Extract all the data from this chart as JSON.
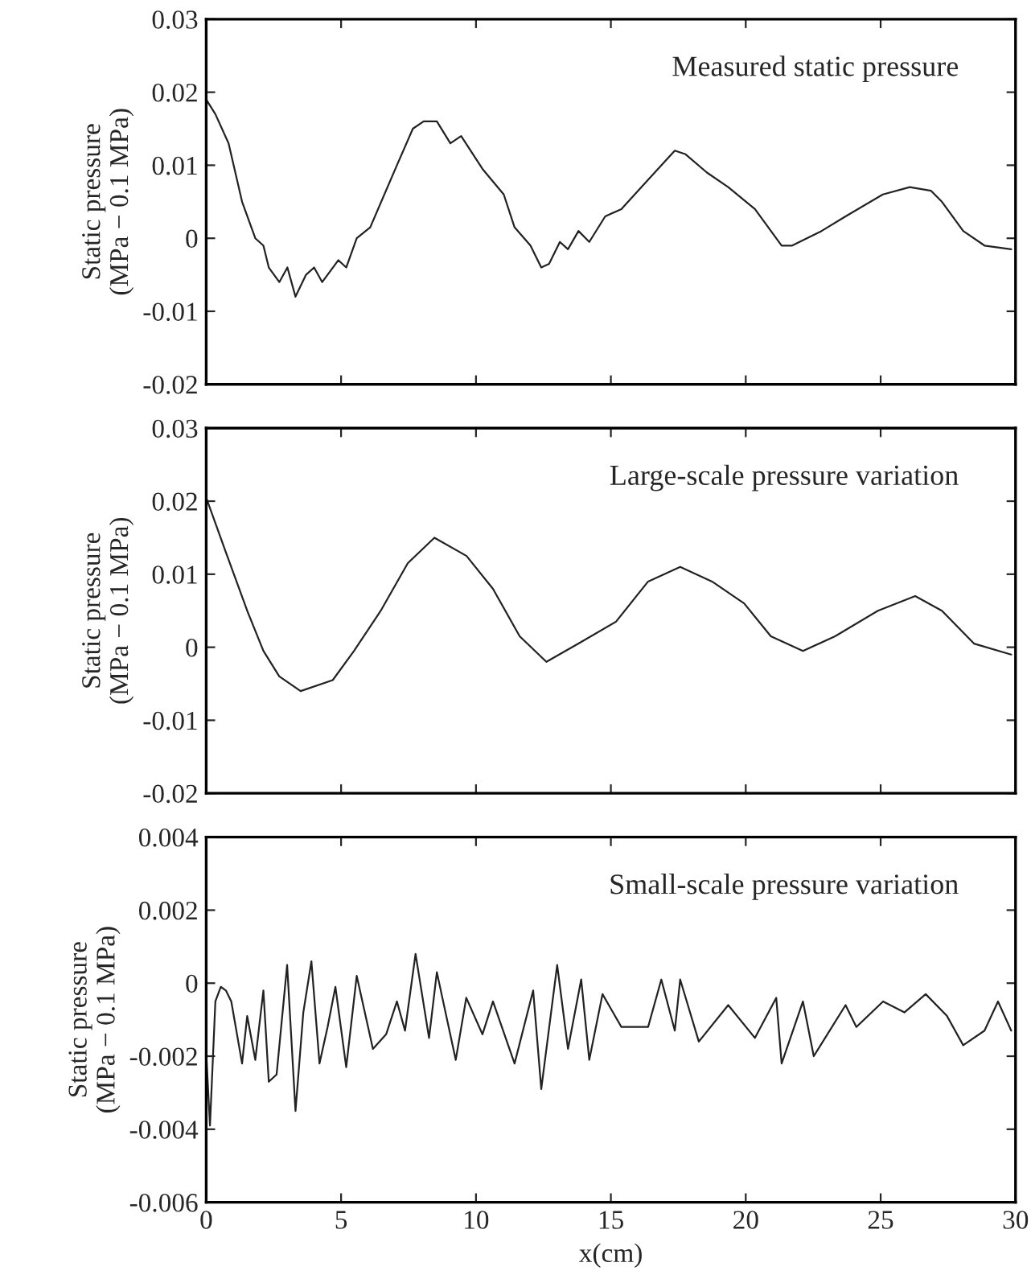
{
  "chart_data": [
    {
      "type": "line",
      "ylabel": "Static pressure\n(MPa − 0.1 MPa)",
      "annotations": [
        "Measured static pressure"
      ],
      "xlim": [
        0,
        30
      ],
      "xticks": [
        0,
        5,
        10,
        15,
        20,
        25,
        30
      ],
      "ylim": [
        -0.02,
        0.03
      ],
      "yticks": [
        -0.02,
        -0.01,
        0,
        0.01,
        0.02,
        0.03
      ],
      "tick_labels": "y",
      "grid": false,
      "legend": false,
      "marker": "none",
      "line_style": "solid",
      "series": [
        {
          "color": "#222222",
          "x": [
            0,
            0.34,
            0.83,
            1.33,
            1.82,
            2.12,
            2.32,
            2.71,
            3.01,
            3.31,
            3.7,
            4.0,
            4.3,
            4.9,
            5.19,
            5.58,
            6.08,
            7.07,
            7.66,
            8.06,
            8.55,
            9.05,
            9.45,
            10.24,
            11.03,
            11.43,
            12.02,
            12.42,
            12.71,
            13.11,
            13.41,
            13.8,
            14.2,
            14.79,
            15.39,
            16.38,
            17.37,
            17.77,
            18.56,
            19.35,
            20.34,
            21.33,
            21.72,
            22.81,
            23.7,
            25.08,
            26.08,
            26.87,
            27.27,
            28.06,
            28.85,
            29.84
          ],
          "values": [
            0.019,
            0.017,
            0.013,
            0.005,
            0,
            -0.001,
            -0.004,
            -0.006,
            -0.004,
            -0.008,
            -0.005,
            -0.004,
            -0.006,
            -0.003,
            -0.004,
            0,
            0.0015,
            0.01,
            0.015,
            0.016,
            0.016,
            0.013,
            0.014,
            0.0095,
            0.006,
            0.0015,
            -0.001,
            -0.004,
            -0.0035,
            -0.0005,
            -0.0015,
            0.001,
            -0.0005,
            0.003,
            0.004,
            0.008,
            0.012,
            0.0115,
            0.009,
            0.007,
            0.004,
            -0.001,
            -0.001,
            0.001,
            0.003,
            0.006,
            0.007,
            0.0065,
            0.005,
            0.001,
            -0.001,
            -0.0015
          ]
        }
      ]
    },
    {
      "type": "line",
      "ylabel": "Static pressure\n(MPa − 0.1 MPa)",
      "annotations": [
        "Large-scale pressure variation"
      ],
      "xlim": [
        0,
        30
      ],
      "xticks": [
        0,
        5,
        10,
        15,
        20,
        25,
        30
      ],
      "ylim": [
        -0.02,
        0.03
      ],
      "yticks": [
        -0.02,
        -0.01,
        0,
        0.01,
        0.02,
        0.03
      ],
      "tick_labels": "y",
      "grid": false,
      "legend": false,
      "marker": "none",
      "line_style": "solid",
      "series": [
        {
          "color": "#222222",
          "x": [
            0,
            0.73,
            1.52,
            2.12,
            2.71,
            3.5,
            4.69,
            5.48,
            6.47,
            7.47,
            8.46,
            9.65,
            10.63,
            11.62,
            12.61,
            13.8,
            15.19,
            16.38,
            17.57,
            18.75,
            19.94,
            20.93,
            22.12,
            23.31,
            24.9,
            26.28,
            27.27,
            28.46,
            29.84
          ],
          "values": [
            0.0205,
            0.013,
            0.005,
            -0.0005,
            -0.004,
            -0.006,
            -0.0045,
            -0.0005,
            0.005,
            0.0115,
            0.015,
            0.0125,
            0.008,
            0.0015,
            -0.002,
            0.0005,
            0.0035,
            0.009,
            0.011,
            0.009,
            0.006,
            0.0015,
            -0.0005,
            0.0015,
            0.005,
            0.007,
            0.005,
            0.0005,
            -0.001
          ]
        }
      ]
    },
    {
      "type": "line",
      "xlabel": "x(cm)",
      "ylabel": "Static pressure\n(MPa − 0.1 MPa)",
      "annotations": [
        "Small-scale pressure variation"
      ],
      "xlim": [
        0,
        30
      ],
      "xticks": [
        0,
        5,
        10,
        15,
        20,
        25,
        30
      ],
      "ylim": [
        -0.006,
        0.004
      ],
      "yticks": [
        -0.006,
        -0.004,
        -0.002,
        0,
        0.002,
        0.004
      ],
      "grid": false,
      "legend": false,
      "marker": "none",
      "line_style": "solid",
      "series": [
        {
          "color": "#222222",
          "x": [
            0,
            0.14,
            0.34,
            0.54,
            0.73,
            0.93,
            1.33,
            1.52,
            1.82,
            2.12,
            2.32,
            2.61,
            3.0,
            3.31,
            3.6,
            3.9,
            4.2,
            4.5,
            4.79,
            5.19,
            5.58,
            6.18,
            6.67,
            7.07,
            7.37,
            7.76,
            8.26,
            8.55,
            9.25,
            9.64,
            10.24,
            10.63,
            11.43,
            12.12,
            12.42,
            13.01,
            13.41,
            13.9,
            14.2,
            14.69,
            15.39,
            16.38,
            16.87,
            17.37,
            17.57,
            18.26,
            19.35,
            20.34,
            21.13,
            21.33,
            22.12,
            22.52,
            23.7,
            24.1,
            25.09,
            25.88,
            26.67,
            27.46,
            28.06,
            28.85,
            29.35,
            29.84
          ],
          "values": [
            -0.0019,
            -0.0039,
            -0.0005,
            -0.0001,
            -0.0002,
            -0.0005,
            -0.0022,
            -0.0009,
            -0.0021,
            -0.0002,
            -0.0027,
            -0.0025,
            0.0005,
            -0.0035,
            -0.0008,
            0.0006,
            -0.0022,
            -0.0012,
            -0.0001,
            -0.0023,
            0.0002,
            -0.0018,
            -0.0014,
            -0.0005,
            -0.0013,
            0.0008,
            -0.0015,
            0.0003,
            -0.0021,
            -0.0004,
            -0.0014,
            -0.0005,
            -0.0022,
            -0.0002,
            -0.0029,
            0.0005,
            -0.0018,
            0.0001,
            -0.0021,
            -0.0003,
            -0.0012,
            -0.0012,
            0.0001,
            -0.0013,
            0.0001,
            -0.0016,
            -0.0006,
            -0.0015,
            -0.0004,
            -0.0022,
            -0.0005,
            -0.002,
            -0.0006,
            -0.0012,
            -0.0005,
            -0.0008,
            -0.0003,
            -0.0009,
            -0.0017,
            -0.0013,
            -0.0005,
            -0.0013
          ]
        }
      ]
    }
  ]
}
